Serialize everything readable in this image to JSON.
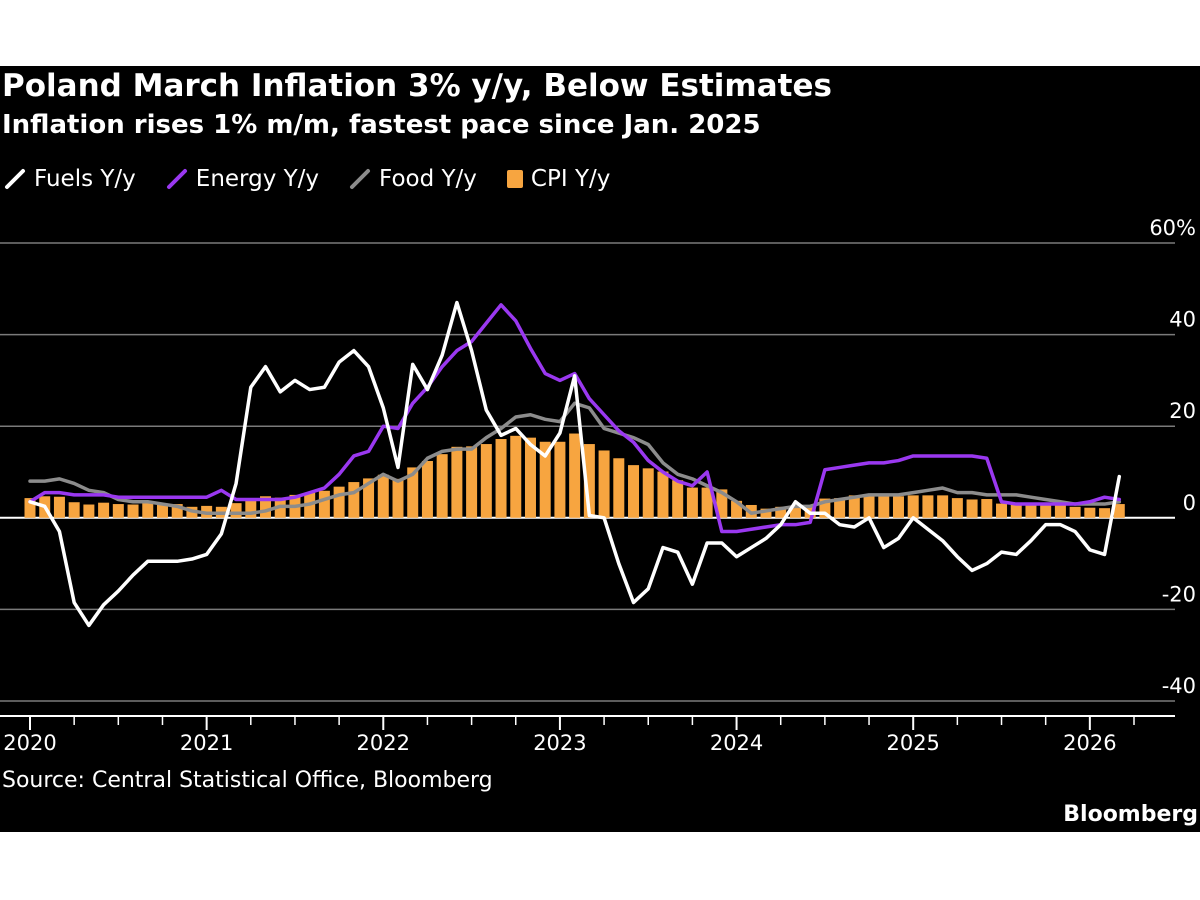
{
  "title": "Poland March Inflation 3% y/y, Below Estimates",
  "subtitle": "Inflation rises 1% m/m, fastest pace since Jan. 2025",
  "source": "Source: Central Statistical Office, Bloomberg",
  "brand": "Bloomberg",
  "colors": {
    "background": "#000000",
    "fuels": "#ffffff",
    "energy": "#9a38f0",
    "food": "#8c8c8c",
    "cpi": "#f7a540",
    "grid": "#7a7a7a"
  },
  "chart_data": {
    "type": "bar+line",
    "title": "Poland March Inflation 3% y/y, Below Estimates",
    "subtitle": "Inflation rises 1% m/m, fastest pace since Jan. 2025",
    "start": "2020-01",
    "frequency": "monthly",
    "xlabel": "",
    "ylabel": "",
    "ylim": [
      -40,
      60
    ],
    "y_ticks": [
      60,
      40,
      20,
      0,
      -20,
      -40
    ],
    "y_tick_labels": [
      "60%",
      "40",
      "20",
      "0",
      "-20",
      "-40"
    ],
    "x_ticks": [
      "2020",
      "2021",
      "2022",
      "2023",
      "2024",
      "2025",
      "2026"
    ],
    "legend": [
      {
        "key": "fuels",
        "label": "Fuels Y/y",
        "kind": "line"
      },
      {
        "key": "energy",
        "label": "Energy Y/y",
        "kind": "line"
      },
      {
        "key": "food",
        "label": "Food Y/y",
        "kind": "line"
      },
      {
        "key": "cpi",
        "label": "CPI Y/y",
        "kind": "bar"
      }
    ],
    "series": [
      {
        "key": "cpi",
        "name": "CPI Y/y",
        "kind": "bar",
        "values": [
          4.3,
          4.7,
          4.6,
          3.4,
          2.9,
          3.3,
          3.0,
          2.9,
          3.2,
          3.1,
          3.0,
          2.4,
          2.6,
          2.4,
          3.2,
          4.3,
          4.7,
          4.4,
          5.0,
          5.5,
          5.9,
          6.8,
          7.8,
          8.6,
          9.4,
          8.5,
          11.0,
          12.4,
          13.9,
          15.5,
          15.6,
          16.1,
          17.2,
          17.9,
          17.5,
          16.6,
          16.6,
          18.4,
          16.1,
          14.7,
          13.0,
          11.5,
          10.8,
          10.1,
          8.2,
          6.6,
          6.6,
          6.2,
          3.7,
          2.8,
          2.0,
          2.4,
          2.5,
          2.6,
          4.2,
          4.3,
          4.9,
          5.0,
          4.7,
          4.7,
          4.9,
          4.9,
          4.9,
          4.3,
          4.0,
          4.1,
          3.1,
          2.9,
          2.9,
          2.8,
          2.8,
          2.4,
          2.2,
          2.1,
          3.0
        ]
      },
      {
        "key": "fuels",
        "name": "Fuels Y/y",
        "kind": "line",
        "values": [
          3.5,
          2.5,
          -3.0,
          -18.5,
          -23.5,
          -19.0,
          -16.0,
          -12.5,
          -9.5,
          -9.5,
          -9.5,
          -9.0,
          -8.0,
          -3.5,
          7.5,
          28.5,
          33.0,
          27.5,
          30.0,
          28.0,
          28.5,
          34.0,
          36.5,
          33.0,
          24.0,
          11.0,
          33.5,
          28.0,
          35.5,
          47.0,
          36.5,
          23.5,
          18.0,
          19.5,
          16.0,
          13.5,
          18.5,
          31.0,
          0.5,
          0.0,
          -10.0,
          -18.5,
          -15.5,
          -6.5,
          -7.5,
          -14.5,
          -5.5,
          -5.5,
          -8.5,
          -6.5,
          -4.5,
          -1.5,
          3.5,
          1.0,
          1.0,
          -1.5,
          -2.0,
          0.0,
          -6.5,
          -4.5,
          0.0,
          -2.5,
          -5.0,
          -8.5,
          -11.5,
          -10.0,
          -7.5,
          -8.0,
          -5.0,
          -1.5,
          -1.5,
          -3.0,
          -7.0,
          -8.0,
          9.0
        ]
      },
      {
        "key": "energy",
        "name": "Energy Y/y",
        "kind": "line",
        "values": [
          3.5,
          5.5,
          5.5,
          5.0,
          5.0,
          5.0,
          4.5,
          4.5,
          4.5,
          4.5,
          4.5,
          4.5,
          4.5,
          6.0,
          4.0,
          4.0,
          4.0,
          4.0,
          4.5,
          5.5,
          6.5,
          9.5,
          13.5,
          14.5,
          20.0,
          19.5,
          25.0,
          28.5,
          33.0,
          36.5,
          38.5,
          42.5,
          46.5,
          43.0,
          37.0,
          31.5,
          30.0,
          31.5,
          26.0,
          22.5,
          19.0,
          16.5,
          12.5,
          10.0,
          8.0,
          7.0,
          10.0,
          -3.0,
          -3.0,
          -2.5,
          -2.0,
          -1.5,
          -1.5,
          -1.0,
          10.5,
          11.0,
          11.5,
          12.0,
          12.0,
          12.5,
          13.5,
          13.5,
          13.5,
          13.5,
          13.5,
          13.0,
          3.5,
          3.0,
          3.0,
          3.0,
          3.0,
          3.0,
          3.5,
          4.5,
          4.0
        ]
      },
      {
        "key": "food",
        "name": "Food Y/y",
        "kind": "line",
        "values": [
          8.0,
          8.0,
          8.5,
          7.5,
          6.0,
          5.5,
          4.0,
          3.5,
          3.5,
          3.0,
          2.5,
          1.5,
          1.0,
          1.0,
          1.0,
          1.0,
          1.5,
          2.5,
          2.5,
          3.0,
          4.0,
          5.0,
          5.5,
          7.5,
          9.5,
          8.0,
          9.5,
          13.0,
          14.5,
          15.0,
          15.0,
          17.5,
          19.5,
          22.0,
          22.5,
          21.5,
          21.0,
          25.0,
          24.0,
          19.5,
          18.5,
          17.5,
          16.0,
          12.0,
          9.5,
          8.5,
          7.0,
          5.5,
          3.5,
          1.0,
          1.5,
          2.0,
          2.5,
          2.5,
          3.5,
          4.0,
          4.5,
          5.0,
          5.0,
          5.0,
          5.5,
          6.0,
          6.5,
          5.5,
          5.5,
          5.0,
          5.0,
          5.0,
          4.5,
          4.0,
          3.5,
          3.0,
          3.0,
          3.0,
          3.5
        ]
      }
    ]
  }
}
